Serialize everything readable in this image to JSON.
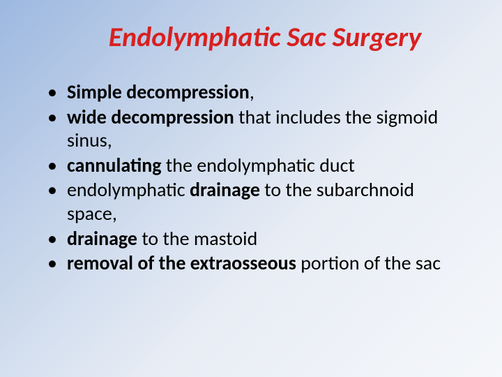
{
  "title": "Endolymphatic Sac Surgery",
  "title_color": "#d82020",
  "title_fontsize": 40,
  "body_fontsize": 28,
  "body_color": "#000000",
  "background_gradient": [
    "#9db8e0",
    "#c5d4ea",
    "#e8edf5",
    "#f5f7fa"
  ],
  "bullets": [
    {
      "bold1": "Simple decompression",
      "rest1": ","
    },
    {
      "plain1": " ",
      "bold1": "wide decompression",
      "rest1": " that includes the sigmoid sinus,"
    },
    {
      "plain1": " ",
      "bold1": "cannulating",
      "rest1": " the endolymphatic duct"
    },
    {
      "plain1": "endolymphatic ",
      "bold1": "drainage",
      "rest1": " to the subarchnoid space,"
    },
    {
      "plain1": " ",
      "bold1": "drainage",
      "rest1": " to the mastoid"
    },
    {
      "bold1": "removal of the extraosseous",
      "rest1": " portion of the sac"
    }
  ]
}
